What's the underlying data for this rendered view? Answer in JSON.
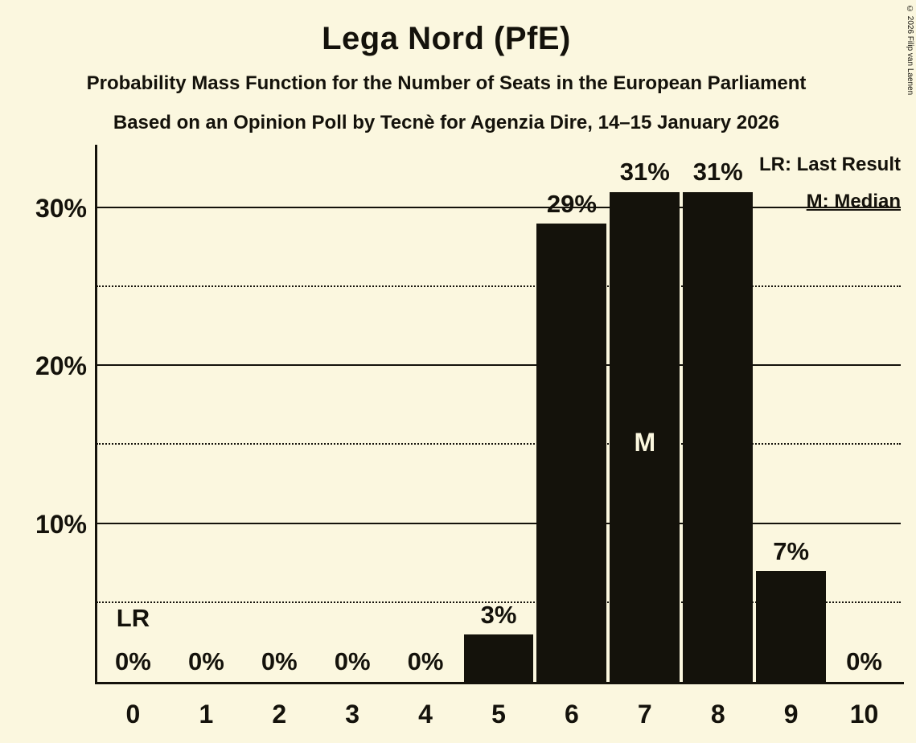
{
  "title": "Lega Nord (PfE)",
  "subtitle1": "Probability Mass Function for the Number of Seats in the European Parliament",
  "subtitle2": "Based on an Opinion Poll by Tecnè for Agenzia Dire, 14–15 January 2026",
  "copyright": "© 2026 Filip van Laenen",
  "legend": {
    "lr": "LR: Last Result",
    "m": "M: Median"
  },
  "colors": {
    "background": "#FBF7DF",
    "bar": "#14120B",
    "text": "#14120B",
    "label_inside_bar": "#FBF7DF"
  },
  "chart_data": {
    "type": "bar",
    "title": "Lega Nord (PfE)",
    "categories": [
      "0",
      "1",
      "2",
      "3",
      "4",
      "5",
      "6",
      "7",
      "8",
      "9",
      "10"
    ],
    "values": [
      0,
      0,
      0,
      0,
      0,
      3,
      29,
      31,
      31,
      7,
      0
    ],
    "bar_labels": [
      "0%",
      "0%",
      "0%",
      "0%",
      "0%",
      "3%",
      "29%",
      "31%",
      "31%",
      "7%",
      "0%"
    ],
    "xlabel": "",
    "ylabel": "",
    "ylim": [
      0,
      34
    ],
    "yticks_solid": [
      {
        "v": 10,
        "label": "10%"
      },
      {
        "v": 20,
        "label": "20%"
      },
      {
        "v": 30,
        "label": "30%"
      }
    ],
    "yticks_dotted": [
      5,
      15,
      25
    ],
    "grid": "horizontal",
    "legend_position": "top-right",
    "annotations": {
      "last_result": {
        "seat_index": 0,
        "label": "LR"
      },
      "median": {
        "seat_index": 7,
        "label": "M"
      }
    }
  }
}
